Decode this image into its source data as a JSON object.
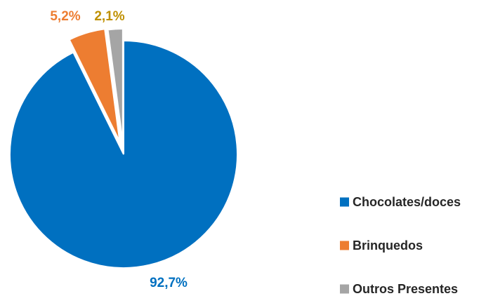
{
  "chart_data": {
    "type": "pie",
    "title": "",
    "categories": [
      "Chocolates/doces",
      "Brinquedos",
      "Outros Presentes"
    ],
    "values": [
      92.7,
      5.2,
      2.1
    ],
    "value_labels": [
      "92,7%",
      "5,2%",
      "2,1%"
    ],
    "colors": [
      "#0070C0",
      "#ED7D31",
      "#A5A5A5"
    ],
    "label_colors": [
      "#0070C0",
      "#ED7D31",
      "#BF9000"
    ],
    "exploded_slices": [
      1,
      2
    ],
    "legend": {
      "placement": "right",
      "entries": [
        "Chocolates/doces",
        "Brinquedos",
        "Outros Presentes"
      ]
    }
  }
}
